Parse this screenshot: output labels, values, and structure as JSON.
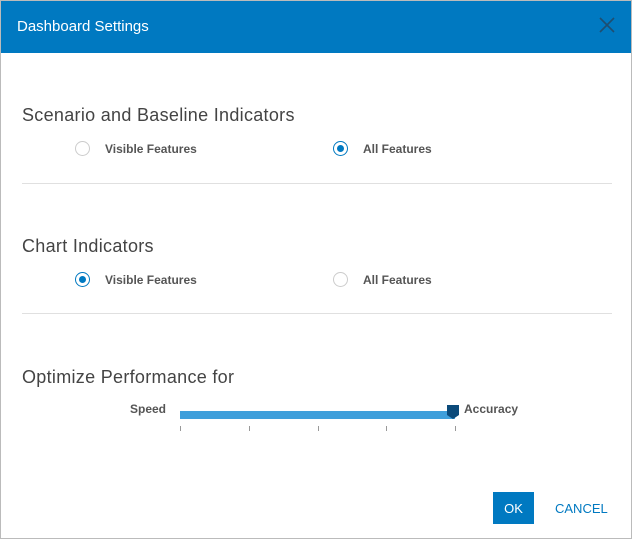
{
  "dialog": {
    "title": "Dashboard Settings",
    "close_icon": "close-icon"
  },
  "sections": [
    {
      "title": "Scenario and Baseline Indicators",
      "options": [
        {
          "label": "Visible Features",
          "selected": false
        },
        {
          "label": "All Features",
          "selected": true
        }
      ]
    },
    {
      "title": "Chart Indicators",
      "options": [
        {
          "label": "Visible Features",
          "selected": true
        },
        {
          "label": "All Features",
          "selected": false
        }
      ]
    }
  ],
  "performance": {
    "title": "Optimize Performance for",
    "min_label": "Speed",
    "max_label": "Accuracy",
    "value_fraction": 1.0,
    "ticks": 5
  },
  "buttons": {
    "ok": "OK",
    "cancel": "CANCEL"
  },
  "colors": {
    "accent": "#0079c1",
    "track": "#3f9fdb",
    "thumb": "#0b4a7a"
  }
}
